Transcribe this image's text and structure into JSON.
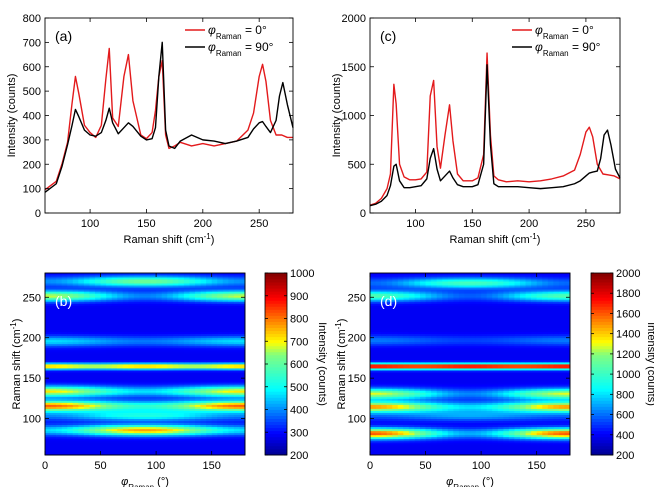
{
  "figure": {
    "panels": [
      {
        "label": "(a)",
        "type": "line",
        "xlabel": "Raman shift (cm-1)",
        "ylabel": "Intensity (counts)",
        "xlim": [
          60,
          280
        ],
        "ylim": [
          0,
          800
        ],
        "xticks": [
          100,
          150,
          200,
          250
        ],
        "yticks": [
          0,
          100,
          200,
          300,
          400,
          500,
          600,
          700,
          800
        ],
        "legend_position": "top-right",
        "series": [
          {
            "name": "φRaman = 0°",
            "color": "#e31a1c",
            "x": [
              60,
              70,
              75,
              80,
              84,
              87,
              90,
              95,
              100,
              105,
              110,
              114,
              117,
              120,
              125,
              130,
              134,
              138,
              145,
              150,
              155,
              158,
              161,
              164,
              167,
              170,
              175,
              180,
              190,
              200,
              210,
              220,
              230,
              240,
              245,
              250,
              253,
              256,
              260,
              265,
              270,
              275,
              280
            ],
            "y": [
              95,
              130,
              200,
              290,
              450,
              560,
              490,
              360,
              330,
              310,
              360,
              550,
              675,
              390,
              355,
              560,
              650,
              460,
              320,
              305,
              330,
              420,
              560,
              625,
              320,
              265,
              275,
              290,
              275,
              285,
              275,
              285,
              295,
              340,
              410,
              560,
              610,
              540,
              380,
              320,
              320,
              310,
              310
            ]
          },
          {
            "name": "φRaman = 90°",
            "color": "#000000",
            "x": [
              60,
              70,
              75,
              80,
              84,
              87,
              90,
              95,
              100,
              105,
              110,
              114,
              117,
              120,
              125,
              130,
              134,
              138,
              145,
              150,
              155,
              158,
              161,
              164,
              167,
              170,
              175,
              180,
              190,
              200,
              210,
              220,
              230,
              240,
              245,
              250,
              253,
              256,
              260,
              265,
              268,
              271,
              275,
              280
            ],
            "y": [
              85,
              120,
              190,
              280,
              360,
              425,
              395,
              340,
              320,
              315,
              330,
              380,
              430,
              370,
              325,
              350,
              370,
              355,
              315,
              300,
              305,
              350,
              560,
              700,
              340,
              275,
              265,
              295,
              320,
              300,
              295,
              285,
              295,
              310,
              345,
              370,
              375,
              355,
              330,
              380,
              480,
              535,
              445,
              350
            ]
          }
        ]
      },
      {
        "label": "(c)",
        "type": "line",
        "xlabel": "Raman shift (cm-1)",
        "ylabel": "Intensity (counts)",
        "xlim": [
          60,
          280
        ],
        "ylim": [
          0,
          2000
        ],
        "xticks": [
          100,
          150,
          200,
          250
        ],
        "yticks": [
          0,
          500,
          1000,
          1500,
          2000
        ],
        "legend_position": "top-right",
        "series": [
          {
            "name": "φRaman = 0°",
            "color": "#e31a1c",
            "x": [
              60,
              65,
              70,
              75,
              78,
              81,
              83,
              86,
              90,
              95,
              100,
              105,
              110,
              113,
              116,
              119,
              122,
              126,
              130,
              133,
              137,
              142,
              150,
              155,
              160,
              163,
              166,
              169,
              173,
              180,
              190,
              200,
              210,
              220,
              230,
              240,
              245,
              250,
              253,
              256,
              260,
              265,
              270,
              275,
              280
            ],
            "y": [
              80,
              100,
              150,
              250,
              400,
              1320,
              1120,
              500,
              370,
              340,
              340,
              350,
              420,
              1200,
              1360,
              680,
              460,
              800,
              1110,
              740,
              400,
              330,
              330,
              360,
              600,
              1640,
              800,
              380,
              340,
              320,
              330,
              320,
              330,
              350,
              380,
              440,
              600,
              830,
              880,
              780,
              500,
              400,
              390,
              380,
              350
            ]
          },
          {
            "name": "φRaman = 90°",
            "color": "#000000",
            "x": [
              60,
              65,
              70,
              75,
              78,
              81,
              83,
              86,
              90,
              95,
              100,
              105,
              110,
              113,
              116,
              119,
              122,
              126,
              130,
              133,
              137,
              142,
              150,
              155,
              160,
              163,
              166,
              169,
              173,
              180,
              190,
              200,
              210,
              220,
              230,
              240,
              245,
              250,
              253,
              256,
              260,
              263,
              266,
              269,
              272,
              276,
              280
            ],
            "y": [
              75,
              90,
              120,
              180,
              280,
              480,
              500,
              330,
              260,
              260,
              270,
              280,
              350,
              560,
              660,
              450,
              330,
              380,
              430,
              360,
              290,
              270,
              270,
              290,
              500,
              1520,
              700,
              300,
              270,
              270,
              270,
              260,
              250,
              260,
              270,
              300,
              330,
              380,
              410,
              420,
              430,
              560,
              800,
              850,
              700,
              450,
              360
            ]
          }
        ]
      },
      {
        "label": "(b)",
        "type": "heatmap",
        "xlabel": "φRaman (°)",
        "ylabel": "Raman shift (cm-1)",
        "xlim": [
          0,
          180
        ],
        "ylim": [
          55,
          280
        ],
        "xticks": [
          0,
          50,
          100,
          150
        ],
        "yticks": [
          100,
          150,
          200,
          250
        ],
        "colorbar": {
          "min": 200,
          "max": 1000,
          "ticks": [
            200,
            300,
            400,
            500,
            600,
            700,
            800,
            900,
            1000
          ],
          "label": "Intensity (counts)"
        },
        "bands": [
          {
            "shift": 86,
            "mode": "sin2",
            "base": 380,
            "amp": 300
          },
          {
            "shift": 104,
            "mode": "sin2",
            "base": 300,
            "amp": 130
          },
          {
            "shift": 116,
            "mode": "cos2",
            "base": 450,
            "amp": 280
          },
          {
            "shift": 134,
            "mode": "cos2",
            "base": 380,
            "amp": 250
          },
          {
            "shift": 165,
            "mode": "const",
            "base": 620,
            "amp": 60
          },
          {
            "shift": 196,
            "mode": "cos2",
            "base": 300,
            "amp": 80
          },
          {
            "shift": 252,
            "mode": "cos2",
            "base": 310,
            "amp": 280
          },
          {
            "shift": 270,
            "mode": "sin2",
            "base": 320,
            "amp": 220
          }
        ]
      },
      {
        "label": "(d)",
        "type": "heatmap",
        "xlabel": "φRaman (°)",
        "ylabel": "Raman shift (cm-1)",
        "xlim": [
          0,
          180
        ],
        "ylim": [
          55,
          280
        ],
        "xticks": [
          0,
          50,
          100,
          150
        ],
        "yticks": [
          100,
          150,
          200,
          250
        ],
        "colorbar": {
          "min": 200,
          "max": 2000,
          "ticks": [
            200,
            400,
            600,
            800,
            1000,
            1200,
            1400,
            1600,
            1800,
            2000
          ],
          "label": "Intensity (counts)"
        },
        "bands": [
          {
            "shift": 82,
            "mode": "cos2",
            "base": 520,
            "amp": 900
          },
          {
            "shift": 104,
            "mode": "sin2",
            "base": 350,
            "amp": 150
          },
          {
            "shift": 115,
            "mode": "cos2",
            "base": 600,
            "amp": 700
          },
          {
            "shift": 131,
            "mode": "cos2",
            "base": 450,
            "amp": 650
          },
          {
            "shift": 165,
            "mode": "const",
            "base": 1600,
            "amp": 80
          },
          {
            "shift": 197,
            "mode": "cos2",
            "base": 330,
            "amp": 100
          },
          {
            "shift": 252,
            "mode": "cos2",
            "base": 380,
            "amp": 500
          },
          {
            "shift": 268,
            "mode": "sin2",
            "base": 400,
            "amp": 450
          }
        ]
      }
    ]
  }
}
